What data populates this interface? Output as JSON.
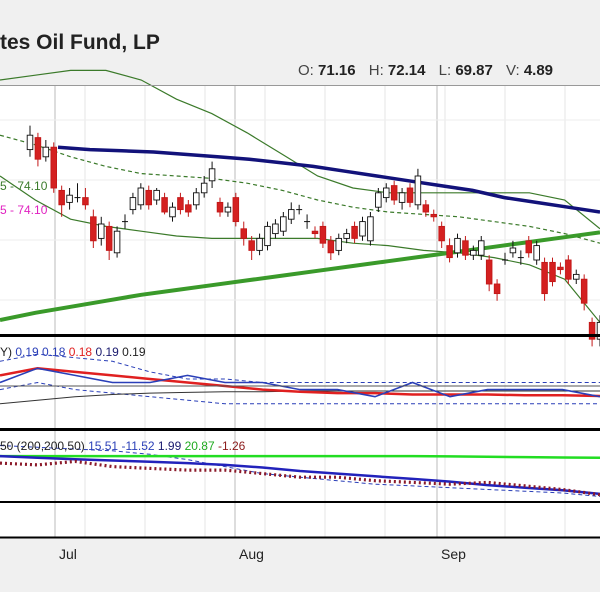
{
  "header": {
    "title": "tes Oil Fund, LP",
    "open_label": "O:",
    "open": "71.16",
    "high_label": "H:",
    "high": "72.14",
    "low_label": "L:",
    "low": "69.87",
    "vol_label": "V:",
    "vol": "4.89"
  },
  "overlay_labels": {
    "ma_green": "5 - 74.10",
    "ma_magenta": "5 - 74.10"
  },
  "indicator1": {
    "title": "Y)",
    "values": [
      {
        "text": "0.19",
        "color": "#2a3fb8"
      },
      {
        "text": "0.18",
        "color": "#2a3fb8"
      },
      {
        "text": "0.18",
        "color": "#e02020"
      },
      {
        "text": "0.19",
        "color": "#1a1a6e"
      },
      {
        "text": "0.19",
        "color": "#222222"
      }
    ]
  },
  "indicator2": {
    "title": "50 (200,200,50)",
    "values": [
      {
        "text": "15.51",
        "color": "#2a3fb8"
      },
      {
        "text": "-11.52",
        "color": "#2a3fb8"
      },
      {
        "text": "1.99",
        "color": "#1a1a6e"
      },
      {
        "text": "20.87",
        "color": "#1faa1f"
      },
      {
        "text": "-1.26",
        "color": "#8b1a1a"
      }
    ]
  },
  "chart_data": {
    "type": "line",
    "x_tick_labels": [
      "Jul",
      "Aug",
      "Sep"
    ],
    "price_panel": {
      "candles": [
        {
          "o": 74.6,
          "c": 75.2,
          "h": 75.6,
          "l": 74.3
        },
        {
          "o": 75.1,
          "c": 74.2,
          "h": 75.3,
          "l": 73.9
        },
        {
          "o": 74.3,
          "c": 74.7,
          "h": 75.0,
          "l": 74.1
        },
        {
          "o": 74.7,
          "c": 73.0,
          "h": 74.9,
          "l": 72.8
        },
        {
          "o": 72.9,
          "c": 72.3,
          "h": 73.1,
          "l": 71.8
        },
        {
          "o": 72.4,
          "c": 72.7,
          "h": 73.0,
          "l": 72.1
        },
        {
          "o": 72.6,
          "c": 72.6,
          "h": 73.2,
          "l": 72.4
        },
        {
          "o": 72.6,
          "c": 72.3,
          "h": 73.0,
          "l": 72.1
        },
        {
          "o": 71.8,
          "c": 70.8,
          "h": 72.1,
          "l": 70.5
        },
        {
          "o": 70.9,
          "c": 71.5,
          "h": 71.8,
          "l": 70.6
        },
        {
          "o": 71.4,
          "c": 70.4,
          "h": 71.6,
          "l": 70.0
        },
        {
          "o": 70.3,
          "c": 71.2,
          "h": 71.4,
          "l": 70.1
        },
        {
          "o": 71.6,
          "c": 71.6,
          "h": 71.9,
          "l": 71.3
        },
        {
          "o": 72.1,
          "c": 72.6,
          "h": 72.8,
          "l": 71.9
        },
        {
          "o": 72.3,
          "c": 73.0,
          "h": 73.2,
          "l": 72.1
        },
        {
          "o": 72.9,
          "c": 72.3,
          "h": 73.1,
          "l": 72.1
        },
        {
          "o": 72.5,
          "c": 72.9,
          "h": 73.0,
          "l": 72.3
        },
        {
          "o": 72.6,
          "c": 72.0,
          "h": 72.8,
          "l": 71.9
        },
        {
          "o": 71.8,
          "c": 72.2,
          "h": 72.4,
          "l": 71.6
        },
        {
          "o": 72.6,
          "c": 72.1,
          "h": 72.8,
          "l": 71.9
        },
        {
          "o": 72.3,
          "c": 72.0,
          "h": 72.5,
          "l": 71.8
        },
        {
          "o": 72.3,
          "c": 72.8,
          "h": 73.0,
          "l": 72.1
        },
        {
          "o": 72.8,
          "c": 73.2,
          "h": 73.5,
          "l": 72.6
        },
        {
          "o": 73.3,
          "c": 73.8,
          "h": 74.1,
          "l": 73.0
        },
        {
          "o": 72.4,
          "c": 72.0,
          "h": 72.6,
          "l": 71.8
        },
        {
          "o": 72.0,
          "c": 72.2,
          "h": 72.4,
          "l": 71.8
        },
        {
          "o": 72.6,
          "c": 71.6,
          "h": 72.8,
          "l": 71.4
        },
        {
          "o": 71.3,
          "c": 70.9,
          "h": 71.6,
          "l": 70.6
        },
        {
          "o": 70.8,
          "c": 70.4,
          "h": 71.0,
          "l": 70.0
        },
        {
          "o": 70.4,
          "c": 70.9,
          "h": 71.1,
          "l": 70.2
        },
        {
          "o": 70.6,
          "c": 71.4,
          "h": 71.6,
          "l": 70.4
        },
        {
          "o": 71.1,
          "c": 71.5,
          "h": 71.7,
          "l": 70.9
        },
        {
          "o": 71.2,
          "c": 71.8,
          "h": 72.0,
          "l": 71.0
        },
        {
          "o": 71.7,
          "c": 72.1,
          "h": 72.4,
          "l": 71.5
        },
        {
          "o": 72.1,
          "c": 72.1,
          "h": 72.3,
          "l": 71.9
        },
        {
          "o": 71.6,
          "c": 71.6,
          "h": 71.9,
          "l": 71.3
        },
        {
          "o": 71.2,
          "c": 71.1,
          "h": 71.4,
          "l": 70.9
        },
        {
          "o": 71.4,
          "c": 70.7,
          "h": 71.6,
          "l": 70.5
        },
        {
          "o": 70.8,
          "c": 70.3,
          "h": 71.0,
          "l": 70.0
        },
        {
          "o": 70.4,
          "c": 70.9,
          "h": 71.1,
          "l": 70.2
        },
        {
          "o": 70.9,
          "c": 71.1,
          "h": 71.3,
          "l": 70.7
        },
        {
          "o": 71.4,
          "c": 70.9,
          "h": 71.6,
          "l": 70.7
        },
        {
          "o": 71.0,
          "c": 71.6,
          "h": 71.8,
          "l": 70.8
        },
        {
          "o": 70.8,
          "c": 71.8,
          "h": 72.0,
          "l": 70.6
        },
        {
          "o": 72.2,
          "c": 72.8,
          "h": 73.0,
          "l": 72.0
        },
        {
          "o": 72.6,
          "c": 73.0,
          "h": 73.2,
          "l": 72.4
        },
        {
          "o": 73.1,
          "c": 72.5,
          "h": 73.3,
          "l": 72.3
        },
        {
          "o": 72.4,
          "c": 72.8,
          "h": 73.0,
          "l": 72.1
        },
        {
          "o": 73.0,
          "c": 72.4,
          "h": 73.2,
          "l": 72.2
        },
        {
          "o": 72.3,
          "c": 73.5,
          "h": 73.8,
          "l": 72.1
        },
        {
          "o": 72.3,
          "c": 72.0,
          "h": 72.5,
          "l": 71.8
        },
        {
          "o": 71.9,
          "c": 71.8,
          "h": 72.1,
          "l": 71.6
        },
        {
          "o": 71.4,
          "c": 70.8,
          "h": 71.6,
          "l": 70.5
        },
        {
          "o": 70.6,
          "c": 70.1,
          "h": 70.9,
          "l": 69.9
        },
        {
          "o": 70.3,
          "c": 70.9,
          "h": 71.1,
          "l": 70.1
        },
        {
          "o": 70.8,
          "c": 70.2,
          "h": 71.0,
          "l": 70.0
        },
        {
          "o": 70.2,
          "c": 70.4,
          "h": 70.6,
          "l": 70.0
        },
        {
          "o": 70.2,
          "c": 70.8,
          "h": 71.0,
          "l": 70.0
        },
        {
          "o": 70.0,
          "c": 69.0,
          "h": 70.2,
          "l": 68.7
        },
        {
          "o": 69.0,
          "c": 68.6,
          "h": 69.2,
          "l": 68.3
        },
        {
          "o": 70.0,
          "c": 70.0,
          "h": 70.3,
          "l": 69.8
        },
        {
          "o": 70.3,
          "c": 70.5,
          "h": 70.8,
          "l": 70.1
        },
        {
          "o": 70.1,
          "c": 70.1,
          "h": 70.4,
          "l": 69.8
        },
        {
          "o": 70.8,
          "c": 70.3,
          "h": 71.0,
          "l": 70.1
        },
        {
          "o": 70.0,
          "c": 70.6,
          "h": 70.8,
          "l": 69.8
        },
        {
          "o": 69.9,
          "c": 68.6,
          "h": 70.1,
          "l": 68.3
        },
        {
          "o": 69.9,
          "c": 69.1,
          "h": 70.1,
          "l": 68.9
        },
        {
          "o": 69.7,
          "c": 69.6,
          "h": 69.9,
          "l": 69.4
        },
        {
          "o": 70.0,
          "c": 69.2,
          "h": 70.2,
          "l": 69.0
        },
        {
          "o": 69.2,
          "c": 69.4,
          "h": 69.6,
          "l": 69.0
        },
        {
          "o": 69.2,
          "c": 68.2,
          "h": 69.4,
          "l": 67.9
        },
        {
          "o": 67.4,
          "c": 66.7,
          "h": 67.6,
          "l": 66.4
        },
        {
          "o": 66.7,
          "c": 67.4,
          "h": 67.7,
          "l": 66.4
        }
      ],
      "ma_blue": [
        74.7,
        74.6,
        74.55,
        74.5,
        74.4,
        74.3,
        74.2,
        74.05,
        73.9,
        73.7,
        73.5,
        73.3,
        73.1,
        72.9,
        72.6,
        72.4,
        72.2,
        72.0
      ],
      "ma_green": [
        67.5,
        67.8,
        68.05,
        68.3,
        68.55,
        68.75,
        68.95,
        69.15,
        69.35,
        69.55,
        69.75,
        69.95,
        70.15,
        70.35,
        70.55,
        70.75,
        70.95,
        71.15
      ],
      "ma_dashed": [
        75.2,
        74.8,
        74.3,
        73.9,
        73.6,
        73.5,
        73.4,
        73.2,
        72.9,
        72.5,
        72.2,
        72.0,
        71.9,
        71.8,
        71.6,
        71.4,
        71.1,
        70.7
      ],
      "bb_upper": [
        77.5,
        77.7,
        77.9,
        77.9,
        77.5,
        76.7,
        76.1,
        75.3,
        74.4,
        73.5,
        73.0,
        72.8,
        72.8,
        72.8,
        72.8,
        72.8,
        72.5,
        71.3
      ],
      "bb_lower": [
        73.5,
        72.5,
        71.7,
        71.4,
        71.2,
        71.0,
        70.9,
        70.9,
        70.9,
        70.9,
        70.7,
        70.6,
        70.4,
        70.3,
        70.1,
        69.8,
        69.2,
        67.4
      ]
    },
    "indicator1_panel": {
      "red": [
        0.21,
        0.22,
        0.215,
        0.21,
        0.205,
        0.2,
        0.195,
        0.19,
        0.187,
        0.185,
        0.185,
        0.183,
        0.183,
        0.183,
        0.182,
        0.182,
        0.181
      ],
      "blue": [
        0.2,
        0.22,
        0.21,
        0.2,
        0.2,
        0.21,
        0.2,
        0.2,
        0.19,
        0.19,
        0.18,
        0.2,
        0.18,
        0.19,
        0.19,
        0.19,
        0.18
      ],
      "dashed_upper": [
        0.23,
        0.24,
        0.235,
        0.23,
        0.215,
        0.205,
        0.205,
        0.2,
        0.2,
        0.2,
        0.2,
        0.2,
        0.2,
        0.2,
        0.2,
        0.2,
        0.2
      ],
      "dashed_lower": [
        0.19,
        0.2,
        0.19,
        0.185,
        0.18,
        0.175,
        0.17,
        0.17,
        0.17,
        0.17,
        0.17,
        0.17,
        0.17,
        0.17,
        0.17,
        0.17,
        0.17
      ],
      "black": [
        0.17,
        0.175,
        0.18,
        0.183,
        0.185,
        0.186,
        0.187,
        0.187,
        0.188,
        0.188,
        0.188,
        0.188,
        0.188,
        0.188,
        0.188,
        0.188,
        0.188
      ],
      "ylim": [
        0.14,
        0.26
      ]
    },
    "indicator2_panel": {
      "blue": [
        20,
        19,
        18.2,
        17.5,
        16.8,
        16,
        15,
        13.5,
        11.5,
        10,
        8.5,
        7,
        5.5,
        3.5,
        2,
        0.5,
        -1.5
      ],
      "green": [
        20,
        20,
        20,
        20,
        20,
        20,
        20,
        20,
        20,
        20,
        20,
        20,
        19.8,
        19.6,
        19.4,
        19.2,
        19
      ],
      "dotted": [
        16,
        15,
        17,
        14,
        13,
        12,
        12,
        10,
        8,
        8,
        6,
        5,
        4,
        5,
        3,
        1,
        -2
      ],
      "dashed": [
        26,
        25,
        24,
        23,
        21,
        18,
        14,
        10,
        8,
        6,
        4,
        3,
        2,
        1,
        0,
        -1,
        -3
      ],
      "ylim": [
        -5,
        32
      ]
    }
  }
}
